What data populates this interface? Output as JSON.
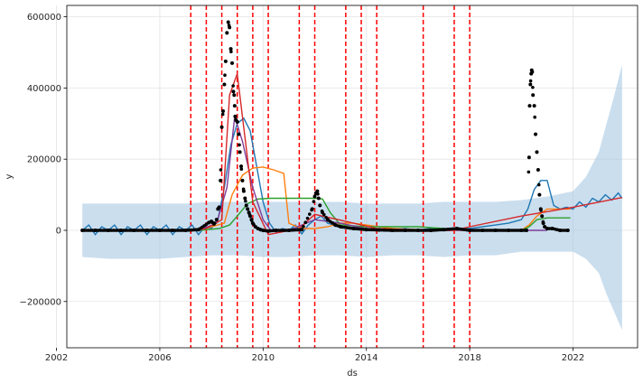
{
  "chart_data": {
    "type": "line",
    "xlabel": "ds",
    "ylabel": "y",
    "xlim": [
      2002.4,
      2024.5
    ],
    "ylim": [
      -330000,
      632000
    ],
    "x_ticks": [
      2002,
      2006,
      2010,
      2014,
      2018,
      2022
    ],
    "x_tick_labels": [
      "2002",
      "2006",
      "2010",
      "2014",
      "2018",
      "2022"
    ],
    "y_ticks": [
      -200000,
      0,
      200000,
      400000,
      600000
    ],
    "y_tick_labels": [
      "−200000",
      "0",
      "200000",
      "400000",
      "600000"
    ],
    "grid": true,
    "colors": {
      "observed": "#000000",
      "forecast": "#1f77b4",
      "interval": "#a6c8e3",
      "changepoint": "#ff0000",
      "trend": "#d62728",
      "orange_series": "#ff7f0e",
      "green_series": "#2ca02c",
      "purple_series": "#7d3c98"
    },
    "changepoints": [
      2007.2,
      2007.8,
      2008.4,
      2009.0,
      2009.6,
      2010.2,
      2011.4,
      2012.0,
      2013.2,
      2013.8,
      2014.4,
      2016.2,
      2017.4,
      2018.0
    ],
    "observed": {
      "x": [
        2003.0,
        2003.5,
        2004.0,
        2004.5,
        2005.0,
        2005.5,
        2006.0,
        2006.5,
        2007.0,
        2007.5,
        2007.9,
        2008.0,
        2008.1,
        2008.2,
        2008.25,
        2008.3,
        2008.35,
        2008.4,
        2008.45,
        2008.5,
        2008.55,
        2008.6,
        2008.65,
        2008.7,
        2008.75,
        2008.8,
        2008.85,
        2008.88,
        2008.9,
        2008.92,
        2008.95,
        2009.0,
        2009.05,
        2009.1,
        2009.15,
        2009.2,
        2009.25,
        2009.3,
        2009.35,
        2009.4,
        2009.45,
        2009.5,
        2009.55,
        2009.6,
        2009.7,
        2009.8,
        2009.9,
        2010.0,
        2010.2,
        2010.5,
        2011.0,
        2011.5,
        2011.9,
        2012.0,
        2012.05,
        2012.1,
        2012.15,
        2012.2,
        2012.3,
        2012.5,
        2012.8,
        2013.0,
        2013.5,
        2014.0,
        2014.5,
        2015.0,
        2015.5,
        2016.0,
        2016.5,
        2017.0,
        2017.5,
        2018.0,
        2018.5,
        2019.0,
        2019.5,
        2020.0,
        2020.2,
        2020.3,
        2020.32,
        2020.35,
        2020.38,
        2020.4,
        2020.42,
        2020.45,
        2020.5,
        2020.55,
        2020.6,
        2020.65,
        2020.7,
        2020.75,
        2020.8,
        2020.85,
        2020.9,
        2021.0,
        2021.2,
        2021.5,
        2021.8
      ],
      "y": [
        0,
        0,
        0,
        0,
        0,
        0,
        0,
        0,
        0,
        2000,
        22000,
        25000,
        18000,
        30000,
        60000,
        65000,
        140000,
        290000,
        335000,
        410000,
        475000,
        555000,
        585000,
        570000,
        510000,
        470000,
        390000,
        380000,
        350000,
        320000,
        310000,
        305000,
        270000,
        220000,
        180000,
        140000,
        110000,
        90000,
        70000,
        60000,
        50000,
        40000,
        30000,
        20000,
        10000,
        5000,
        2000,
        0,
        -2000,
        0,
        0,
        2000,
        60000,
        95000,
        105000,
        110000,
        90000,
        70000,
        50000,
        30000,
        15000,
        10000,
        5000,
        2000,
        1000,
        0,
        0,
        0,
        0,
        2000,
        5000,
        0,
        0,
        0,
        0,
        0,
        0,
        205000,
        350000,
        410000,
        440000,
        450000,
        445000,
        380000,
        350000,
        270000,
        220000,
        170000,
        100000,
        60000,
        40000,
        20000,
        10000,
        5000,
        5000,
        0,
        0
      ]
    },
    "series": [
      {
        "key": "forecast",
        "x": [
          2003.0,
          2003.25,
          2003.5,
          2003.75,
          2004.0,
          2004.25,
          2004.5,
          2004.75,
          2005.0,
          2005.25,
          2005.5,
          2005.75,
          2006.0,
          2006.25,
          2006.5,
          2006.75,
          2007.0,
          2007.25,
          2007.5,
          2007.75,
          2008.0,
          2008.25,
          2008.5,
          2008.75,
          2009.0,
          2009.25,
          2009.5,
          2009.75,
          2010.0,
          2010.25,
          2010.5,
          2010.75,
          2011.0,
          2011.25,
          2011.5,
          2011.75,
          2012.0,
          2012.25,
          2012.5,
          2012.75,
          2013.0,
          2013.5,
          2014.0,
          2014.5,
          2015.0,
          2015.5,
          2016.0,
          2016.5,
          2017.0,
          2017.5,
          2018.0,
          2018.5,
          2019.0,
          2019.5,
          2020.0,
          2020.25,
          2020.5,
          2020.75,
          2021.0,
          2021.25,
          2021.5,
          2021.75,
          2022.0,
          2022.25,
          2022.5,
          2022.75,
          2023.0,
          2023.25,
          2023.5,
          2023.75,
          2023.9
        ],
        "y": [
          0,
          15000,
          -12000,
          10000,
          0,
          15000,
          -12000,
          10000,
          0,
          15000,
          -12000,
          10000,
          0,
          15000,
          -12000,
          10000,
          0,
          15000,
          -12000,
          10000,
          5000,
          30000,
          120000,
          240000,
          300000,
          315000,
          280000,
          180000,
          80000,
          20000,
          -5000,
          5000,
          0,
          15000,
          -10000,
          15000,
          30000,
          40000,
          20000,
          15000,
          10000,
          8000,
          5000,
          0,
          2000,
          5000,
          0,
          5000,
          0,
          5000,
          5000,
          10000,
          15000,
          20000,
          30000,
          60000,
          115000,
          140000,
          140000,
          70000,
          60000,
          65000,
          60000,
          80000,
          65000,
          90000,
          80000,
          100000,
          85000,
          105000,
          90000
        ]
      },
      {
        "key": "orange_series",
        "x": [
          2003.0,
          2007.5,
          2008.5,
          2008.8,
          2009.2,
          2009.6,
          2010.0,
          2010.4,
          2010.8,
          2011.0,
          2011.5,
          2012.0,
          2012.5,
          2013.0,
          2013.5,
          2014.0,
          2015.0,
          2016.0,
          2017.0,
          2018.0,
          2019.0,
          2020.0,
          2020.3,
          2020.6,
          2021.0,
          2021.9
        ],
        "y": [
          0,
          0,
          20000,
          100000,
          155000,
          175000,
          178000,
          170000,
          160000,
          20000,
          5000,
          5000,
          10000,
          20000,
          20000,
          15000,
          5000,
          2000,
          0,
          0,
          0,
          0,
          15000,
          40000,
          60000,
          60000
        ]
      },
      {
        "key": "green_series",
        "x": [
          2003.0,
          2007.5,
          2008.3,
          2008.7,
          2009.0,
          2009.4,
          2009.8,
          2010.3,
          2011.0,
          2011.5,
          2012.0,
          2012.3,
          2012.6,
          2013.0,
          2014.0,
          2015.0,
          2016.0,
          2017.0,
          2018.0,
          2019.0,
          2020.0,
          2020.3,
          2020.6,
          2021.0,
          2021.9
        ],
        "y": [
          0,
          0,
          5000,
          15000,
          40000,
          75000,
          88000,
          90000,
          90000,
          90000,
          90000,
          88000,
          50000,
          15000,
          10000,
          10000,
          10000,
          5000,
          2000,
          0,
          0,
          10000,
          30000,
          35000,
          35000
        ]
      },
      {
        "key": "purple_series",
        "x": [
          2003.0,
          2007.5,
          2008.2,
          2008.6,
          2008.9,
          2009.2,
          2009.6,
          2010.0,
          2010.3,
          2011.0,
          2012.0,
          2013.0,
          2014.0,
          2016.0,
          2018.0,
          2020.0,
          2021.0
        ],
        "y": [
          0,
          0,
          20000,
          120000,
          320000,
          250000,
          120000,
          30000,
          0,
          0,
          30000,
          20000,
          5000,
          0,
          0,
          0,
          0
        ]
      },
      {
        "key": "trend",
        "x": [
          2003.0,
          2007.2,
          2007.8,
          2008.4,
          2008.7,
          2009.0,
          2009.6,
          2010.2,
          2011.4,
          2012.0,
          2013.2,
          2013.8,
          2014.4,
          2016.2,
          2017.4,
          2018.0,
          2020.0,
          2022.0,
          2023.9
        ],
        "y": [
          -2000,
          -2000,
          5000,
          30000,
          380000,
          440000,
          80000,
          -12000,
          5000,
          45000,
          25000,
          15000,
          5000,
          0,
          0,
          10000,
          40000,
          65000,
          92000
        ]
      }
    ],
    "interval": {
      "x": [
        2003.0,
        2004.0,
        2005.0,
        2006.0,
        2007.0,
        2008.0,
        2009.0,
        2010.0,
        2011.0,
        2012.0,
        2013.0,
        2014.0,
        2015.0,
        2016.0,
        2017.0,
        2018.0,
        2019.0,
        2020.0,
        2021.0,
        2022.0,
        2022.5,
        2023.0,
        2023.3,
        2023.6,
        2023.9
      ],
      "upper": [
        75000,
        75000,
        75000,
        75000,
        75000,
        80000,
        80000,
        80000,
        80000,
        80000,
        80000,
        75000,
        75000,
        75000,
        80000,
        80000,
        80000,
        85000,
        95000,
        110000,
        150000,
        220000,
        300000,
        380000,
        465000
      ],
      "lower": [
        -75000,
        -80000,
        -80000,
        -80000,
        -75000,
        -70000,
        -70000,
        -75000,
        -75000,
        -70000,
        -70000,
        -75000,
        -70000,
        -70000,
        -75000,
        -70000,
        -70000,
        -60000,
        -60000,
        -60000,
        -80000,
        -120000,
        -180000,
        -230000,
        -280000
      ]
    }
  }
}
